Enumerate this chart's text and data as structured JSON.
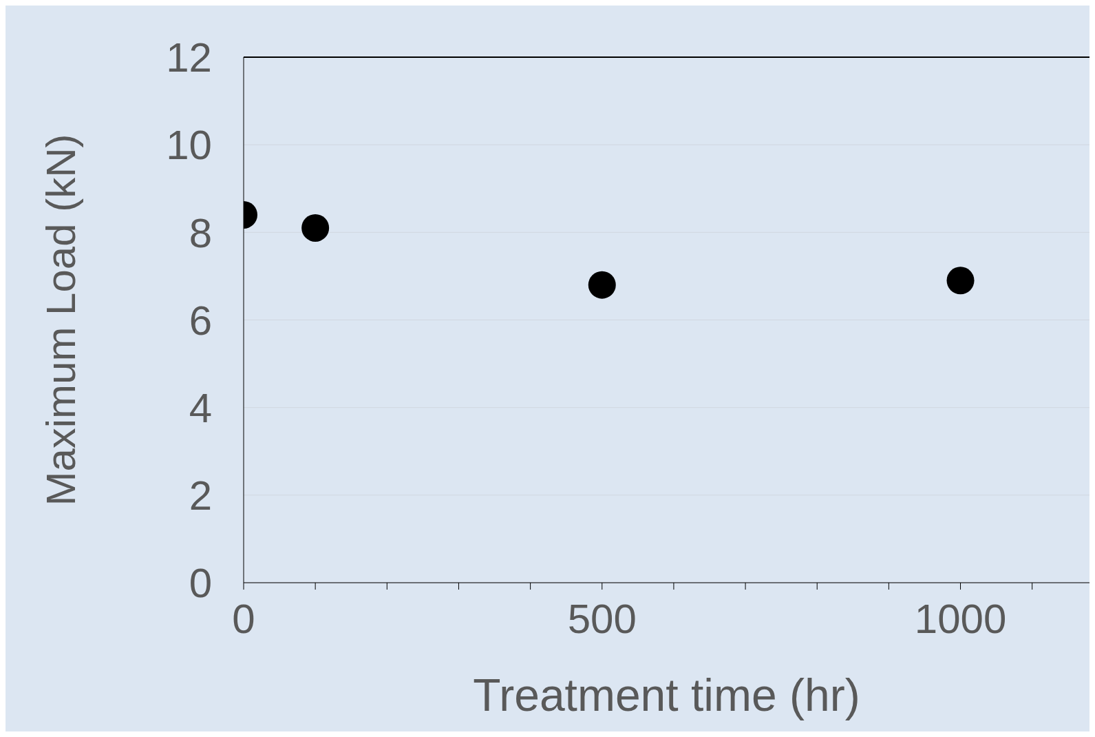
{
  "chart_data": {
    "type": "scatter",
    "xlabel": "Treatment time (hr)",
    "ylabel": "Maximum Load (kN)",
    "x": [
      0,
      100,
      500,
      1000
    ],
    "values": [
      8.4,
      8.1,
      6.8,
      6.9
    ],
    "color": "#000000",
    "marker": "circle",
    "xlim": [
      0,
      1180
    ],
    "xticks": [
      0,
      {
        "value": 100,
        "label": null
      },
      {
        "value": 200,
        "label": null
      },
      {
        "value": 300,
        "label": null
      },
      {
        "value": 400,
        "label": null
      },
      500,
      {
        "value": 600,
        "label": null
      },
      {
        "value": 700,
        "label": null
      },
      {
        "value": 800,
        "label": null
      },
      {
        "value": 900,
        "label": null
      },
      1000,
      {
        "value": 1100,
        "label": null
      }
    ],
    "ylim": [
      0,
      12
    ],
    "yticks": [
      0,
      2,
      4,
      6,
      8,
      10,
      12
    ],
    "grid": "y"
  }
}
